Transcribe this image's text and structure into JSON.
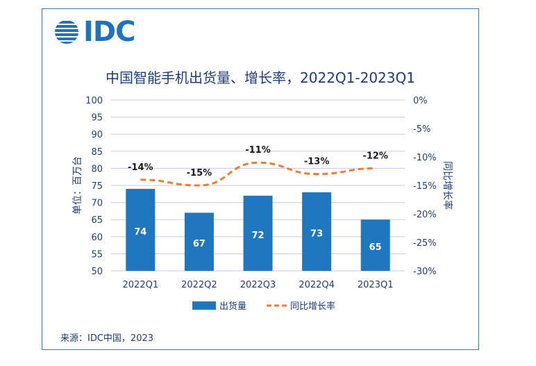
{
  "logo": {
    "text": "IDC"
  },
  "title": "中国智能手机出货量、增长率，2022Q1-2023Q1",
  "source": "来源：IDC中国，2023",
  "colors": {
    "bar": "#1f77bf",
    "line": "#ee7d31",
    "text": "#1f3b7a",
    "grid": "#c8c8e6",
    "frame": "#3a78b8"
  },
  "chart_data": {
    "type": "bar",
    "categories": [
      "2022Q1",
      "2022Q2",
      "2022Q3",
      "2022Q4",
      "2023Q1"
    ],
    "series": [
      {
        "name": "出货量",
        "type": "bar",
        "axis": "left",
        "values": [
          74,
          67,
          72,
          73,
          65
        ],
        "labels": [
          "74",
          "67",
          "72",
          "73",
          "65"
        ]
      },
      {
        "name": "同比增长率",
        "type": "line",
        "style": "dashed",
        "axis": "right",
        "values": [
          -14,
          -15,
          -11,
          -13,
          -12
        ],
        "labels": [
          "-14%",
          "-15%",
          "-11%",
          "-13%",
          "-12%"
        ]
      }
    ],
    "ylabel": "单位：百万台",
    "y2label": "同比增长率",
    "ylim": [
      50,
      100
    ],
    "y_ticks": [
      "50",
      "55",
      "60",
      "65",
      "70",
      "75",
      "80",
      "85",
      "90",
      "95",
      "100"
    ],
    "y2lim": [
      -30,
      0
    ],
    "y2_ticks": [
      "0%",
      "-5%",
      "-10%",
      "-15%",
      "-20%",
      "-25%",
      "-30%"
    ],
    "grid": true,
    "legend_position": "bottom"
  }
}
